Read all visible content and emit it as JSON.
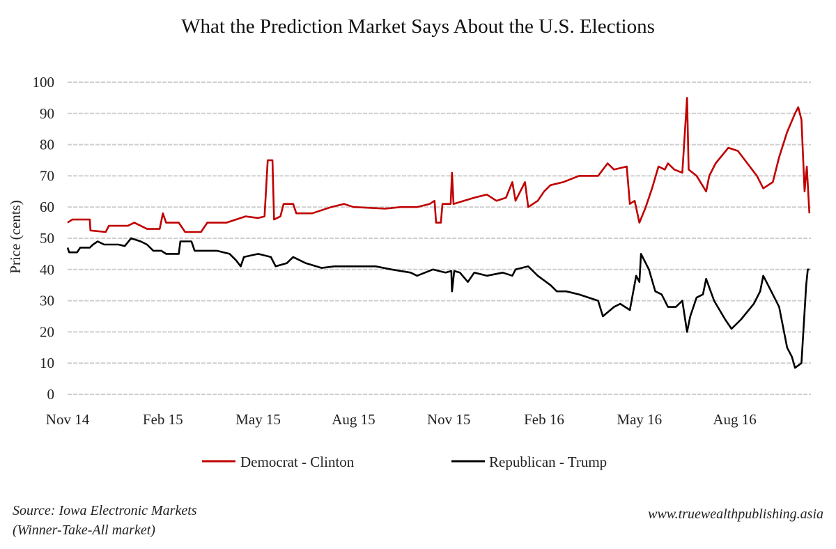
{
  "chart_data": {
    "type": "line",
    "title": "What the Prediction Market Says About the U.S. Elections",
    "xlabel": "",
    "ylabel": "Price (cents)",
    "x_unit": "months since Nov 2014",
    "xlim": [
      0,
      23.4
    ],
    "ylim": [
      0,
      100
    ],
    "yticks": [
      0,
      10,
      20,
      30,
      40,
      50,
      60,
      70,
      80,
      90,
      100
    ],
    "xticks": [
      {
        "m": 0,
        "label": "Nov 14"
      },
      {
        "m": 3,
        "label": "Feb 15"
      },
      {
        "m": 6,
        "label": "May 15"
      },
      {
        "m": 9,
        "label": "Aug 15"
      },
      {
        "m": 12,
        "label": "Nov 15"
      },
      {
        "m": 15,
        "label": "Feb 16"
      },
      {
        "m": 18,
        "label": "May 16"
      },
      {
        "m": 21,
        "label": "Aug 16"
      }
    ],
    "grid": true,
    "legend_position": "bottom",
    "series": [
      {
        "name": "Democrat - Clinton",
        "color": "#c00000",
        "points": [
          [
            0,
            55
          ],
          [
            0.15,
            56
          ],
          [
            0.7,
            56
          ],
          [
            0.72,
            52.5
          ],
          [
            1.2,
            52
          ],
          [
            1.3,
            54
          ],
          [
            1.9,
            54
          ],
          [
            2.1,
            55
          ],
          [
            2.5,
            53
          ],
          [
            2.9,
            53
          ],
          [
            3.0,
            58
          ],
          [
            3.1,
            55
          ],
          [
            3.5,
            55
          ],
          [
            3.7,
            52
          ],
          [
            4.2,
            52
          ],
          [
            4.4,
            55
          ],
          [
            5.0,
            55
          ],
          [
            5.3,
            56
          ],
          [
            5.6,
            57
          ],
          [
            6.0,
            56.5
          ],
          [
            6.2,
            57
          ],
          [
            6.3,
            75
          ],
          [
            6.45,
            75
          ],
          [
            6.5,
            56
          ],
          [
            6.7,
            57
          ],
          [
            6.8,
            61
          ],
          [
            7.1,
            61
          ],
          [
            7.2,
            58
          ],
          [
            7.7,
            58
          ],
          [
            8.0,
            59
          ],
          [
            8.3,
            60
          ],
          [
            8.7,
            61
          ],
          [
            9.0,
            60
          ],
          [
            10,
            59.5
          ],
          [
            10.5,
            60
          ],
          [
            11,
            60
          ],
          [
            11.4,
            61
          ],
          [
            11.55,
            62
          ],
          [
            11.6,
            55
          ],
          [
            11.75,
            55
          ],
          [
            11.8,
            61
          ],
          [
            12.06,
            61
          ],
          [
            12.1,
            71
          ],
          [
            12.15,
            61
          ],
          [
            12.8,
            63
          ],
          [
            13.2,
            64
          ],
          [
            13.5,
            62
          ],
          [
            13.8,
            63
          ],
          [
            14.0,
            68
          ],
          [
            14.1,
            62
          ],
          [
            14.4,
            68
          ],
          [
            14.5,
            60
          ],
          [
            14.8,
            62
          ],
          [
            15.0,
            65
          ],
          [
            15.2,
            67
          ],
          [
            15.6,
            68
          ],
          [
            16.1,
            70
          ],
          [
            16.7,
            70
          ],
          [
            17.0,
            74
          ],
          [
            17.2,
            72
          ],
          [
            17.6,
            73
          ],
          [
            17.7,
            61
          ],
          [
            17.85,
            62
          ],
          [
            18.0,
            55
          ],
          [
            18.2,
            60
          ],
          [
            18.4,
            66
          ],
          [
            18.6,
            73
          ],
          [
            18.8,
            72
          ],
          [
            18.9,
            74
          ],
          [
            19.1,
            72
          ],
          [
            19.35,
            71
          ],
          [
            19.5,
            95
          ],
          [
            19.55,
            72
          ],
          [
            19.8,
            70
          ],
          [
            20.1,
            65
          ],
          [
            20.2,
            70
          ],
          [
            20.4,
            74
          ],
          [
            20.8,
            79
          ],
          [
            21.1,
            78
          ],
          [
            21.4,
            74
          ],
          [
            21.7,
            70
          ],
          [
            21.9,
            66
          ],
          [
            22.2,
            68
          ],
          [
            22.4,
            76
          ],
          [
            22.65,
            84
          ],
          [
            22.9,
            90
          ],
          [
            23.0,
            92
          ],
          [
            23.1,
            88
          ],
          [
            23.2,
            65
          ],
          [
            23.27,
            73
          ],
          [
            23.35,
            58
          ]
        ]
      },
      {
        "name": "Republican - Trump",
        "color": "#000000",
        "points": [
          [
            0,
            47
          ],
          [
            0.05,
            45.5
          ],
          [
            0.3,
            45.5
          ],
          [
            0.4,
            47
          ],
          [
            0.7,
            47
          ],
          [
            0.8,
            48
          ],
          [
            0.95,
            49
          ],
          [
            1.15,
            48
          ],
          [
            1.6,
            48
          ],
          [
            1.8,
            47.5
          ],
          [
            2.0,
            50
          ],
          [
            2.3,
            49
          ],
          [
            2.5,
            48
          ],
          [
            2.7,
            46
          ],
          [
            2.95,
            46
          ],
          [
            3.1,
            45
          ],
          [
            3.5,
            45
          ],
          [
            3.55,
            49
          ],
          [
            3.9,
            49
          ],
          [
            4.0,
            46
          ],
          [
            4.7,
            46
          ],
          [
            5.1,
            45
          ],
          [
            5.3,
            43
          ],
          [
            5.45,
            41
          ],
          [
            5.55,
            44
          ],
          [
            6.0,
            45
          ],
          [
            6.4,
            44
          ],
          [
            6.55,
            41
          ],
          [
            6.9,
            42
          ],
          [
            7.1,
            44
          ],
          [
            7.5,
            42
          ],
          [
            8.0,
            40.5
          ],
          [
            8.4,
            41
          ],
          [
            9.3,
            41
          ],
          [
            9.7,
            41
          ],
          [
            10.2,
            40
          ],
          [
            10.8,
            39
          ],
          [
            11.0,
            38
          ],
          [
            11.5,
            40
          ],
          [
            11.9,
            39
          ],
          [
            12.08,
            39.5
          ],
          [
            12.1,
            33
          ],
          [
            12.17,
            39.5
          ],
          [
            12.35,
            39
          ],
          [
            12.6,
            36
          ],
          [
            12.8,
            39
          ],
          [
            13.2,
            38
          ],
          [
            13.7,
            39
          ],
          [
            14.0,
            38
          ],
          [
            14.1,
            40
          ],
          [
            14.5,
            41
          ],
          [
            14.8,
            38
          ],
          [
            15.2,
            35
          ],
          [
            15.4,
            33
          ],
          [
            15.7,
            33
          ],
          [
            16.1,
            32
          ],
          [
            16.7,
            30
          ],
          [
            16.85,
            25
          ],
          [
            17.2,
            28
          ],
          [
            17.4,
            29
          ],
          [
            17.7,
            27
          ],
          [
            17.9,
            38
          ],
          [
            18.0,
            36
          ],
          [
            18.05,
            45
          ],
          [
            18.3,
            40
          ],
          [
            18.5,
            33
          ],
          [
            18.7,
            32
          ],
          [
            18.9,
            28
          ],
          [
            19.15,
            28
          ],
          [
            19.35,
            30
          ],
          [
            19.5,
            20
          ],
          [
            19.6,
            25
          ],
          [
            19.8,
            31
          ],
          [
            20.0,
            32
          ],
          [
            20.1,
            37
          ],
          [
            20.35,
            30
          ],
          [
            20.7,
            24
          ],
          [
            20.9,
            21
          ],
          [
            21.2,
            24
          ],
          [
            21.6,
            29
          ],
          [
            21.8,
            33
          ],
          [
            21.9,
            38
          ],
          [
            22.1,
            34
          ],
          [
            22.4,
            28
          ],
          [
            22.65,
            15
          ],
          [
            22.8,
            12
          ],
          [
            22.9,
            8.5
          ],
          [
            23.1,
            10
          ],
          [
            23.25,
            35
          ],
          [
            23.3,
            40
          ],
          [
            23.35,
            40
          ]
        ]
      }
    ]
  },
  "source_line1": "Source: Iowa Electronic Markets",
  "source_line2": "(Winner-Take-All market)",
  "website": "www.truewealthpublishing.asia"
}
